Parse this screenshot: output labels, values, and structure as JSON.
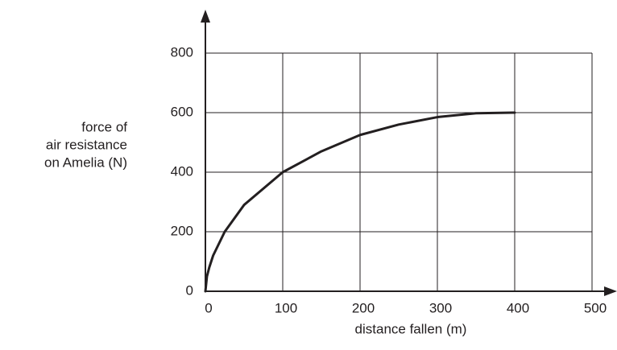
{
  "chart_data": {
    "type": "line",
    "y_label_lines": [
      "force of",
      "air resistance",
      "on Amelia (N)"
    ],
    "x_label": "distance fallen (m)",
    "x": [
      0,
      2,
      5,
      10,
      25,
      50,
      100,
      150,
      200,
      250,
      300,
      350,
      400
    ],
    "series": [
      {
        "color": "#231f20",
        "values": [
          0,
          50,
          80,
          120,
          200,
          290,
          400,
          470,
          525,
          560,
          585,
          598,
          600
        ]
      }
    ],
    "xlim": [
      0,
      500
    ],
    "xticks": [
      0,
      100,
      200,
      300,
      400,
      500
    ],
    "ylim": [
      0,
      800
    ],
    "yticks": [
      0,
      200,
      400,
      600,
      800
    ],
    "grid": true
  }
}
